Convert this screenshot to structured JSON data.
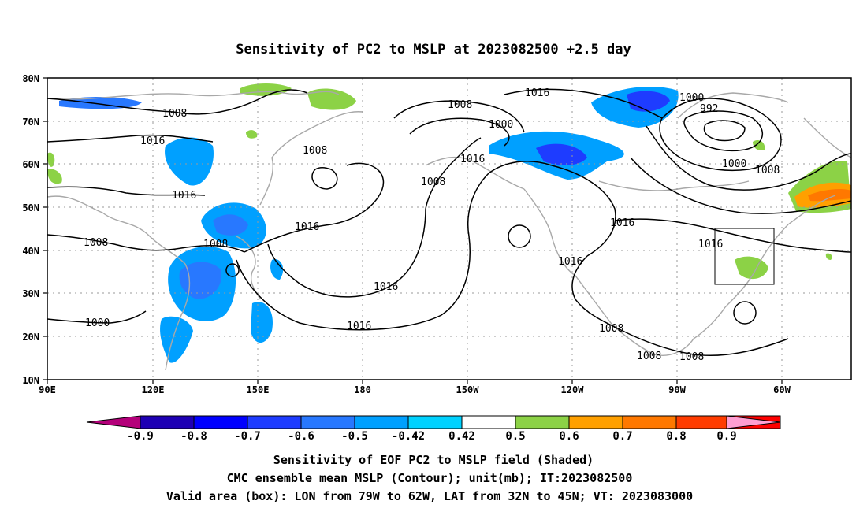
{
  "title": "Sensitivity of PC2 to MSLP at 2023082500 +2.5 day",
  "map": {
    "lon_ticks": [
      "90E",
      "120E",
      "150E",
      "180",
      "150W",
      "120W",
      "90W",
      "60W"
    ],
    "lat_ticks": [
      "80N",
      "70N",
      "60N",
      "50N",
      "40N",
      "30N",
      "20N",
      "10N"
    ],
    "contour_labels": [
      "1008",
      "1016",
      "1016",
      "1008",
      "1008",
      "1000",
      "1008",
      "1016",
      "1008",
      "1000",
      "1016",
      "1008",
      "1016",
      "1016",
      "1016",
      "1000",
      "992",
      "1016",
      "1016",
      "1000",
      "1008",
      "1016",
      "1008",
      "1008",
      "1008"
    ],
    "valid_box": {
      "lon_west": -79,
      "lon_east": -62,
      "lat_south": 32,
      "lat_north": 45
    }
  },
  "colorbar": {
    "labels": [
      "-0.9",
      "-0.8",
      "-0.7",
      "-0.6",
      "-0.5",
      "-0.42",
      "0.42",
      "0.5",
      "0.6",
      "0.7",
      "0.8",
      "0.9"
    ],
    "colors": [
      "#1e00b4",
      "#0000ff",
      "#1e3cff",
      "#2878ff",
      "#00a0ff",
      "#00d2ff",
      "#ffffff",
      "#8cd246",
      "#ffa000",
      "#ff7800",
      "#ff3c00",
      "#ff0000"
    ],
    "low_color": "#b4007a",
    "high_color": "#ff9ed2"
  },
  "caption": {
    "line1": "Sensitivity of EOF PC2 to MSLP field (Shaded)",
    "line2": "CMC ensemble mean MSLP (Contour); unit(mb); IT:2023082500",
    "line3": "Valid area (box): LON from 79W to 62W, LAT from 32N to 45N; VT: 2023083000"
  }
}
